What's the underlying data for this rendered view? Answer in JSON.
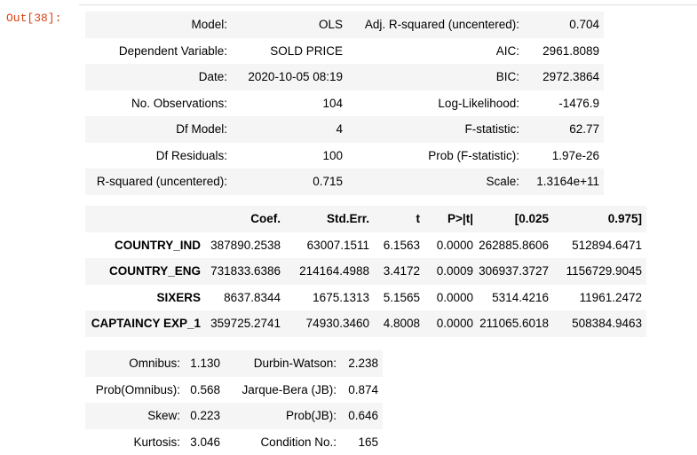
{
  "cell": {
    "prompt": "Out[38]:"
  },
  "summary_top": {
    "rows": [
      [
        "Model:",
        "OLS",
        "Adj. R-squared (uncentered):",
        "0.704"
      ],
      [
        "Dependent Variable:",
        "SOLD PRICE",
        "AIC:",
        "2961.8089"
      ],
      [
        "Date:",
        "2020-10-05 08:19",
        "BIC:",
        "2972.3864"
      ],
      [
        "No. Observations:",
        "104",
        "Log-Likelihood:",
        "-1476.9"
      ],
      [
        "Df Model:",
        "4",
        "F-statistic:",
        "62.77"
      ],
      [
        "Df Residuals:",
        "100",
        "Prob (F-statistic):",
        "1.97e-26"
      ],
      [
        "R-squared (uncentered):",
        "0.715",
        "Scale:",
        "1.3164e+11"
      ]
    ]
  },
  "coef_table": {
    "headers": [
      "",
      "Coef.",
      "Std.Err.",
      "t",
      "P>|t|",
      "[0.025",
      "0.975]"
    ],
    "rows": [
      [
        "COUNTRY_IND",
        "387890.2538",
        "63007.1511",
        "6.1563",
        "0.0000",
        "262885.8606",
        "512894.6471"
      ],
      [
        "COUNTRY_ENG",
        "731833.6386",
        "214164.4988",
        "3.4172",
        "0.0009",
        "306937.3727",
        "1156729.9045"
      ],
      [
        "SIXERS",
        "8637.8344",
        "1675.1313",
        "5.1565",
        "0.0000",
        "5314.4216",
        "11961.2472"
      ],
      [
        "CAPTAINCY EXP_1",
        "359725.2741",
        "74930.3460",
        "4.8008",
        "0.0000",
        "211065.6018",
        "508384.9463"
      ]
    ]
  },
  "summary_bottom": {
    "rows": [
      [
        "Omnibus:",
        "1.130",
        "Durbin-Watson:",
        "2.238"
      ],
      [
        "Prob(Omnibus):",
        "0.568",
        "Jarque-Bera (JB):",
        "0.874"
      ],
      [
        "Skew:",
        "0.223",
        "Prob(JB):",
        "0.646"
      ],
      [
        "Kurtosis:",
        "3.046",
        "Condition No.:",
        "165"
      ]
    ]
  }
}
